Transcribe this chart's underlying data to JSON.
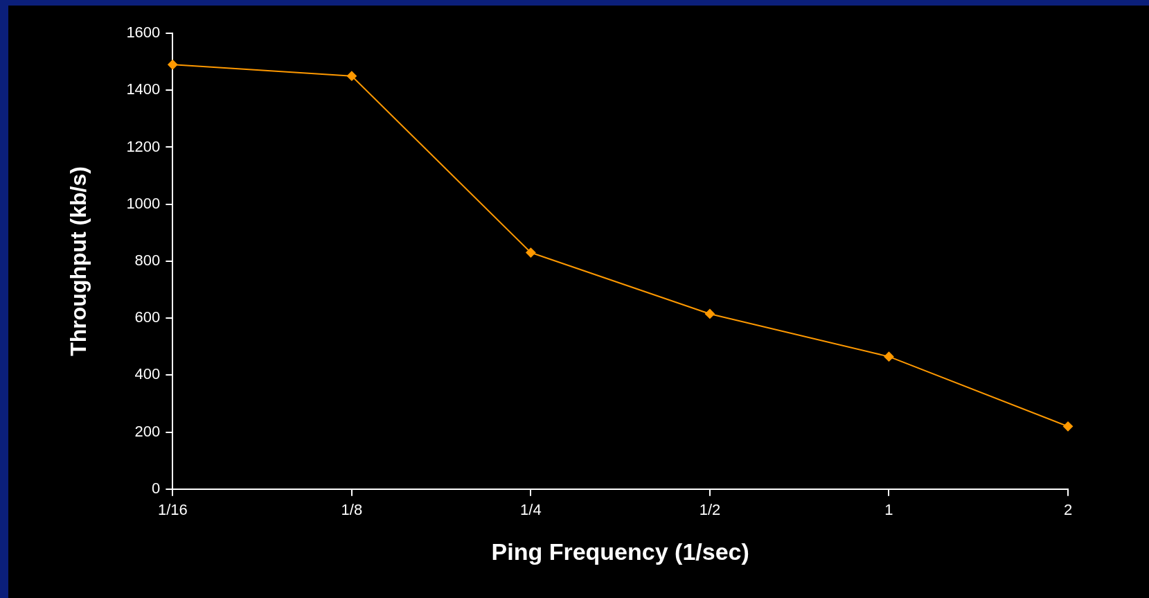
{
  "chart_data": {
    "type": "line",
    "xlabel": "Ping Frequency (1/sec)",
    "ylabel": "Throughput (kb/s)",
    "categories": [
      "1/16",
      "1/8",
      "1/4",
      "1/2",
      "1",
      "2"
    ],
    "series": [
      {
        "color": "#ff9900",
        "values": [
          1490,
          1450,
          830,
          615,
          465,
          220
        ]
      }
    ],
    "ylim": [
      0,
      1600
    ],
    "yticks": [
      0,
      200,
      400,
      600,
      800,
      1000,
      1200,
      1400,
      1600
    ],
    "grid": false,
    "legend": false,
    "marker": "diamond",
    "line_style": "solid"
  }
}
